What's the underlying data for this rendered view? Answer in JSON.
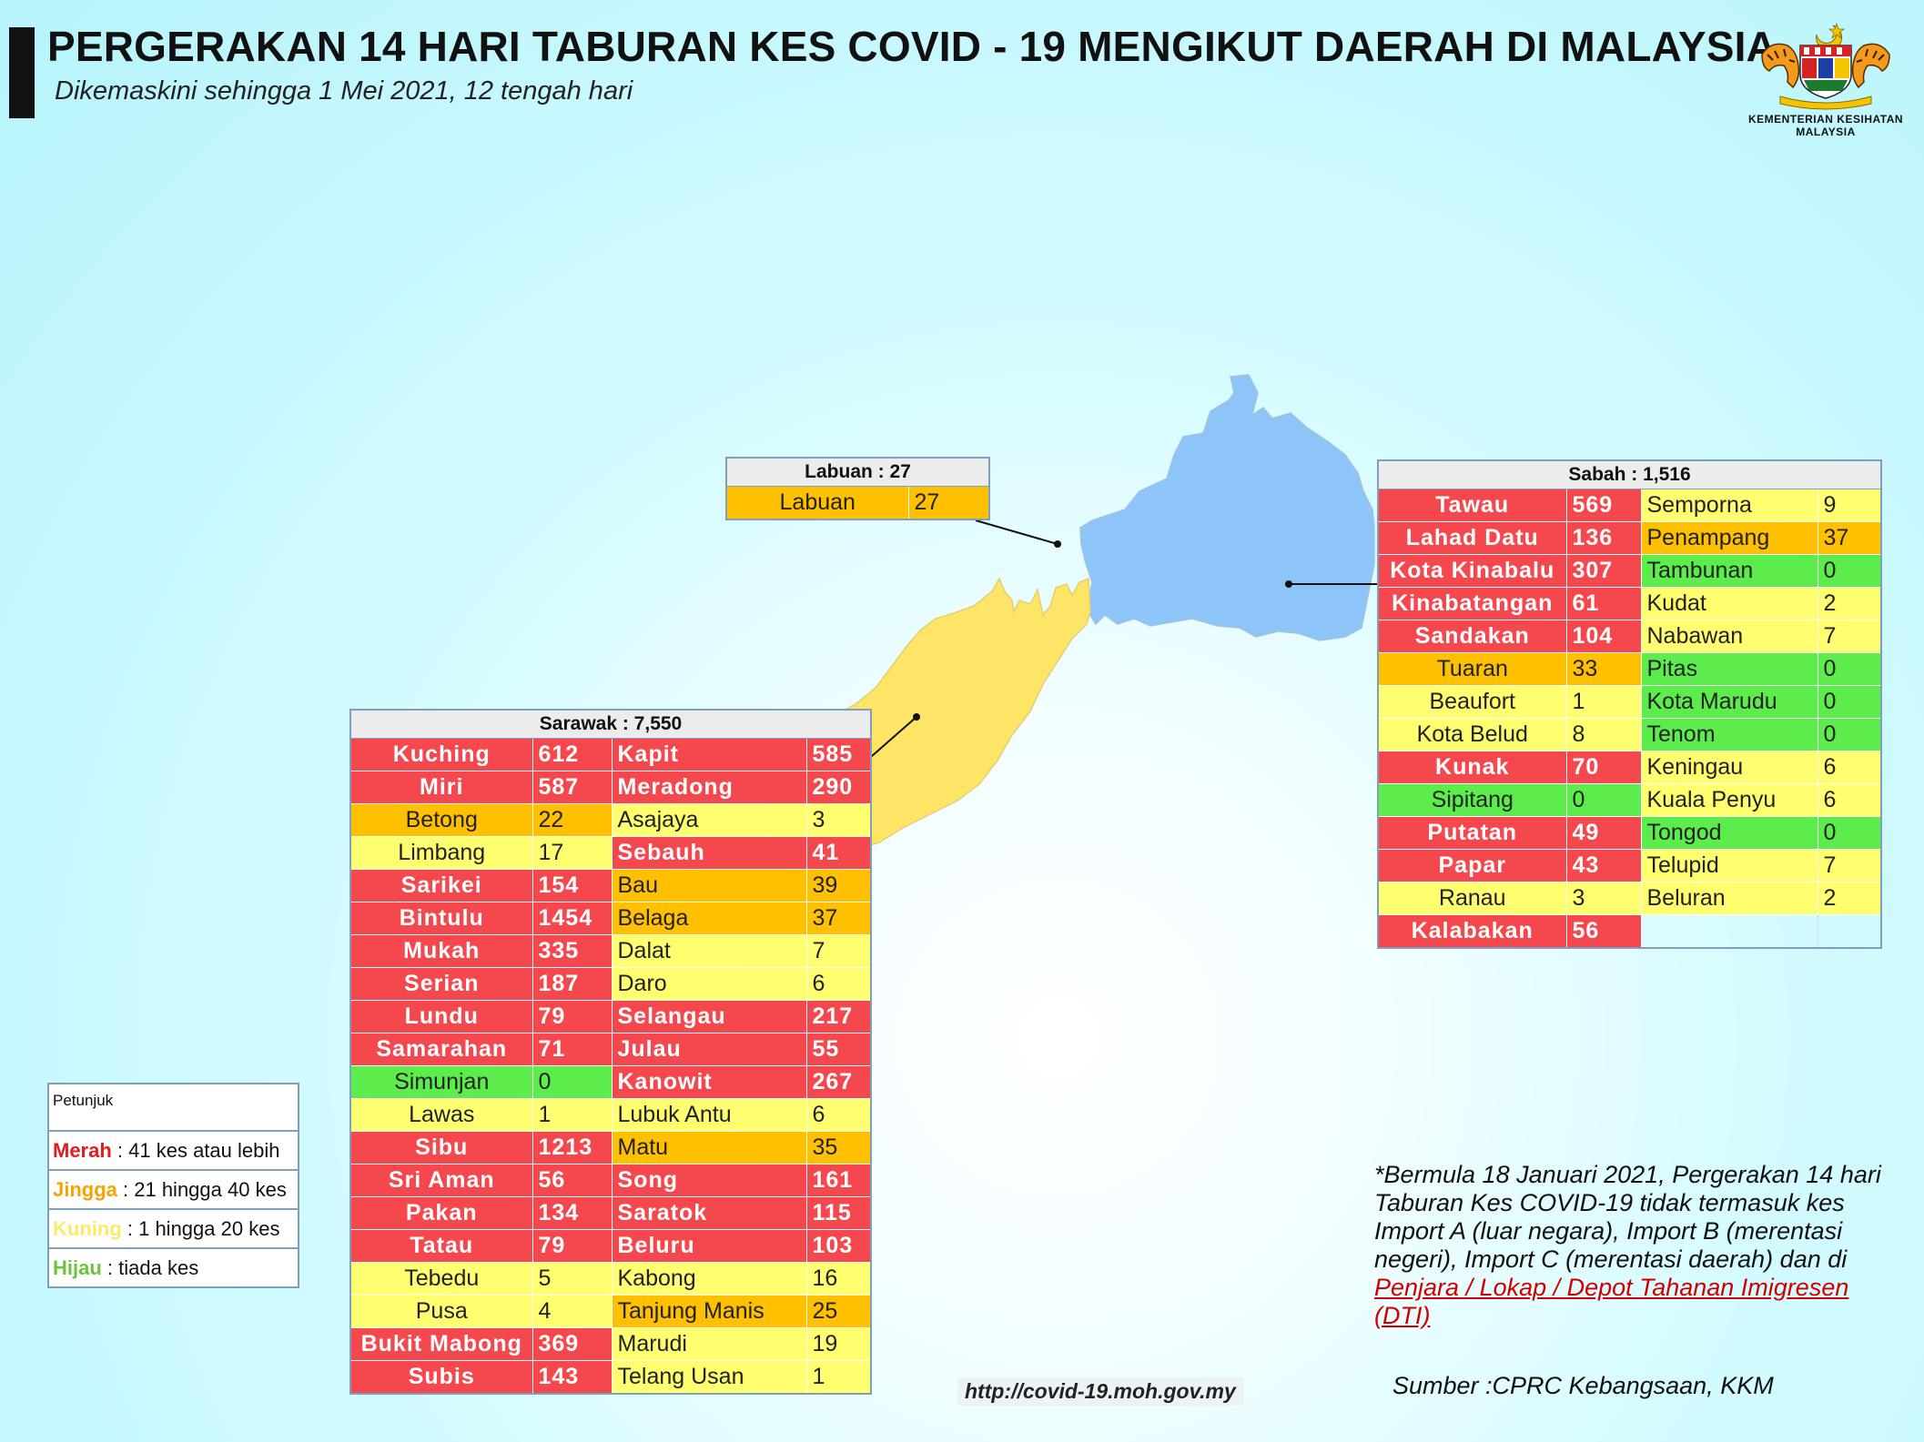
{
  "header": {
    "title": "PERGERAKAN 14 HARI TABURAN KES COVID - 19 MENGIKUT DAERAH DI MALAYSIA",
    "subtitle": "Dikemaskini sehingga 1 Mei 2021, 12 tengah hari",
    "logo_caption_line1": "KEMENTERIAN KESIHATAN",
    "logo_caption_line2": "MALAYSIA"
  },
  "colors": {
    "merah": "#f5484e",
    "jingga": "#ffc000",
    "kuning": "#ffff70",
    "hijau": "#5cec4c",
    "sabah_region": "#8ec5f8",
    "sarawak_region": "#ffe566"
  },
  "labuan": {
    "header": "Labuan : 27",
    "rows": [
      {
        "name": "Labuan",
        "value": "27",
        "level": "jingga"
      }
    ]
  },
  "sabah": {
    "header": "Sabah : 1,516",
    "rows": [
      [
        {
          "name": "Tawau",
          "value": "569",
          "level": "merah"
        },
        {
          "name": "Semporna",
          "value": "9",
          "level": "kuning"
        }
      ],
      [
        {
          "name": "Lahad Datu",
          "value": "136",
          "level": "merah"
        },
        {
          "name": "Penampang",
          "value": "37",
          "level": "jingga"
        }
      ],
      [
        {
          "name": "Kota Kinabalu",
          "value": "307",
          "level": "merah"
        },
        {
          "name": "Tambunan",
          "value": "0",
          "level": "hijau"
        }
      ],
      [
        {
          "name": "Kinabatangan",
          "value": "61",
          "level": "merah"
        },
        {
          "name": "Kudat",
          "value": "2",
          "level": "kuning"
        }
      ],
      [
        {
          "name": "Sandakan",
          "value": "104",
          "level": "merah"
        },
        {
          "name": "Nabawan",
          "value": "7",
          "level": "kuning"
        }
      ],
      [
        {
          "name": "Tuaran",
          "value": "33",
          "level": "jingga"
        },
        {
          "name": "Pitas",
          "value": "0",
          "level": "hijau"
        }
      ],
      [
        {
          "name": "Beaufort",
          "value": "1",
          "level": "kuning"
        },
        {
          "name": "Kota Marudu",
          "value": "0",
          "level": "hijau"
        }
      ],
      [
        {
          "name": "Kota Belud",
          "value": "8",
          "level": "kuning"
        },
        {
          "name": "Tenom",
          "value": "0",
          "level": "hijau"
        }
      ],
      [
        {
          "name": "Kunak",
          "value": "70",
          "level": "merah"
        },
        {
          "name": "Keningau",
          "value": "6",
          "level": "kuning"
        }
      ],
      [
        {
          "name": "Sipitang",
          "value": "0",
          "level": "hijau"
        },
        {
          "name": "Kuala Penyu",
          "value": "6",
          "level": "kuning"
        }
      ],
      [
        {
          "name": "Putatan",
          "value": "49",
          "level": "merah"
        },
        {
          "name": "Tongod",
          "value": "0",
          "level": "hijau"
        }
      ],
      [
        {
          "name": "Papar",
          "value": "43",
          "level": "merah"
        },
        {
          "name": "Telupid",
          "value": "7",
          "level": "kuning"
        }
      ],
      [
        {
          "name": "Ranau",
          "value": "3",
          "level": "kuning"
        },
        {
          "name": "Beluran",
          "value": "2",
          "level": "kuning"
        }
      ],
      [
        {
          "name": "Kalabakan",
          "value": "56",
          "level": "merah"
        },
        null
      ]
    ]
  },
  "sarawak": {
    "header": "Sarawak : 7,550",
    "rows": [
      [
        {
          "name": "Kuching",
          "value": "612",
          "level": "merah"
        },
        {
          "name": "Kapit",
          "value": "585",
          "level": "merah"
        }
      ],
      [
        {
          "name": "Miri",
          "value": "587",
          "level": "merah"
        },
        {
          "name": "Meradong",
          "value": "290",
          "level": "merah"
        }
      ],
      [
        {
          "name": "Betong",
          "value": "22",
          "level": "jingga"
        },
        {
          "name": "Asajaya",
          "value": "3",
          "level": "kuning"
        }
      ],
      [
        {
          "name": "Limbang",
          "value": "17",
          "level": "kuning"
        },
        {
          "name": "Sebauh",
          "value": "41",
          "level": "merah"
        }
      ],
      [
        {
          "name": "Sarikei",
          "value": "154",
          "level": "merah"
        },
        {
          "name": "Bau",
          "value": "39",
          "level": "jingga"
        }
      ],
      [
        {
          "name": "Bintulu",
          "value": "1454",
          "level": "merah"
        },
        {
          "name": "Belaga",
          "value": "37",
          "level": "jingga"
        }
      ],
      [
        {
          "name": "Mukah",
          "value": "335",
          "level": "merah"
        },
        {
          "name": "Dalat",
          "value": "7",
          "level": "kuning"
        }
      ],
      [
        {
          "name": "Serian",
          "value": "187",
          "level": "merah"
        },
        {
          "name": "Daro",
          "value": "6",
          "level": "kuning"
        }
      ],
      [
        {
          "name": "Lundu",
          "value": "79",
          "level": "merah"
        },
        {
          "name": "Selangau",
          "value": "217",
          "level": "merah"
        }
      ],
      [
        {
          "name": "Samarahan",
          "value": "71",
          "level": "merah"
        },
        {
          "name": "Julau",
          "value": "55",
          "level": "merah"
        }
      ],
      [
        {
          "name": "Simunjan",
          "value": "0",
          "level": "hijau"
        },
        {
          "name": "Kanowit",
          "value": "267",
          "level": "merah"
        }
      ],
      [
        {
          "name": "Lawas",
          "value": "1",
          "level": "kuning"
        },
        {
          "name": "Lubuk Antu",
          "value": "6",
          "level": "kuning"
        }
      ],
      [
        {
          "name": "Sibu",
          "value": "1213",
          "level": "merah"
        },
        {
          "name": "Matu",
          "value": "35",
          "level": "jingga"
        }
      ],
      [
        {
          "name": "Sri Aman",
          "value": "56",
          "level": "merah"
        },
        {
          "name": "Song",
          "value": "161",
          "level": "merah"
        }
      ],
      [
        {
          "name": "Pakan",
          "value": "134",
          "level": "merah"
        },
        {
          "name": "Saratok",
          "value": "115",
          "level": "merah"
        }
      ],
      [
        {
          "name": "Tatau",
          "value": "79",
          "level": "merah"
        },
        {
          "name": "Beluru",
          "value": "103",
          "level": "merah"
        }
      ],
      [
        {
          "name": "Tebedu",
          "value": "5",
          "level": "kuning"
        },
        {
          "name": "Kabong",
          "value": "16",
          "level": "kuning"
        }
      ],
      [
        {
          "name": "Pusa",
          "value": "4",
          "level": "kuning"
        },
        {
          "name": "Tanjung Manis",
          "value": "25",
          "level": "jingga"
        }
      ],
      [
        {
          "name": "Bukit Mabong",
          "value": "369",
          "level": "merah"
        },
        {
          "name": "Marudi",
          "value": "19",
          "level": "kuning"
        }
      ],
      [
        {
          "name": "Subis",
          "value": "143",
          "level": "merah"
        },
        {
          "name": "Telang Usan",
          "value": "1",
          "level": "kuning"
        }
      ]
    ]
  },
  "legend": {
    "title": "Petunjuk",
    "items": [
      {
        "key": "merah",
        "label": "Merah",
        "desc": " : 41 kes atau lebih"
      },
      {
        "key": "jingga",
        "label": "Jingga",
        "desc": " : 21 hingga 40 kes"
      },
      {
        "key": "kuning",
        "label": "Kuning",
        "desc": " : 1 hingga 20 kes"
      },
      {
        "key": "hijau",
        "label": "Hijau",
        "desc": " : tiada kes"
      }
    ]
  },
  "note": {
    "text": "*Bermula 18 Januari 2021, Pergerakan 14 hari Taburan Kes COVID-19 tidak termasuk kes Import A (luar negara), Import B (merentasi negeri), Import C (merentasi daerah) dan di ",
    "link": "Penjara / Lokap / Depot Tahanan Imigresen (DTI)"
  },
  "footer": {
    "url": "http://covid-19.moh.gov.my",
    "source": "Sumber :CPRC Kebangsaan,  KKM"
  }
}
